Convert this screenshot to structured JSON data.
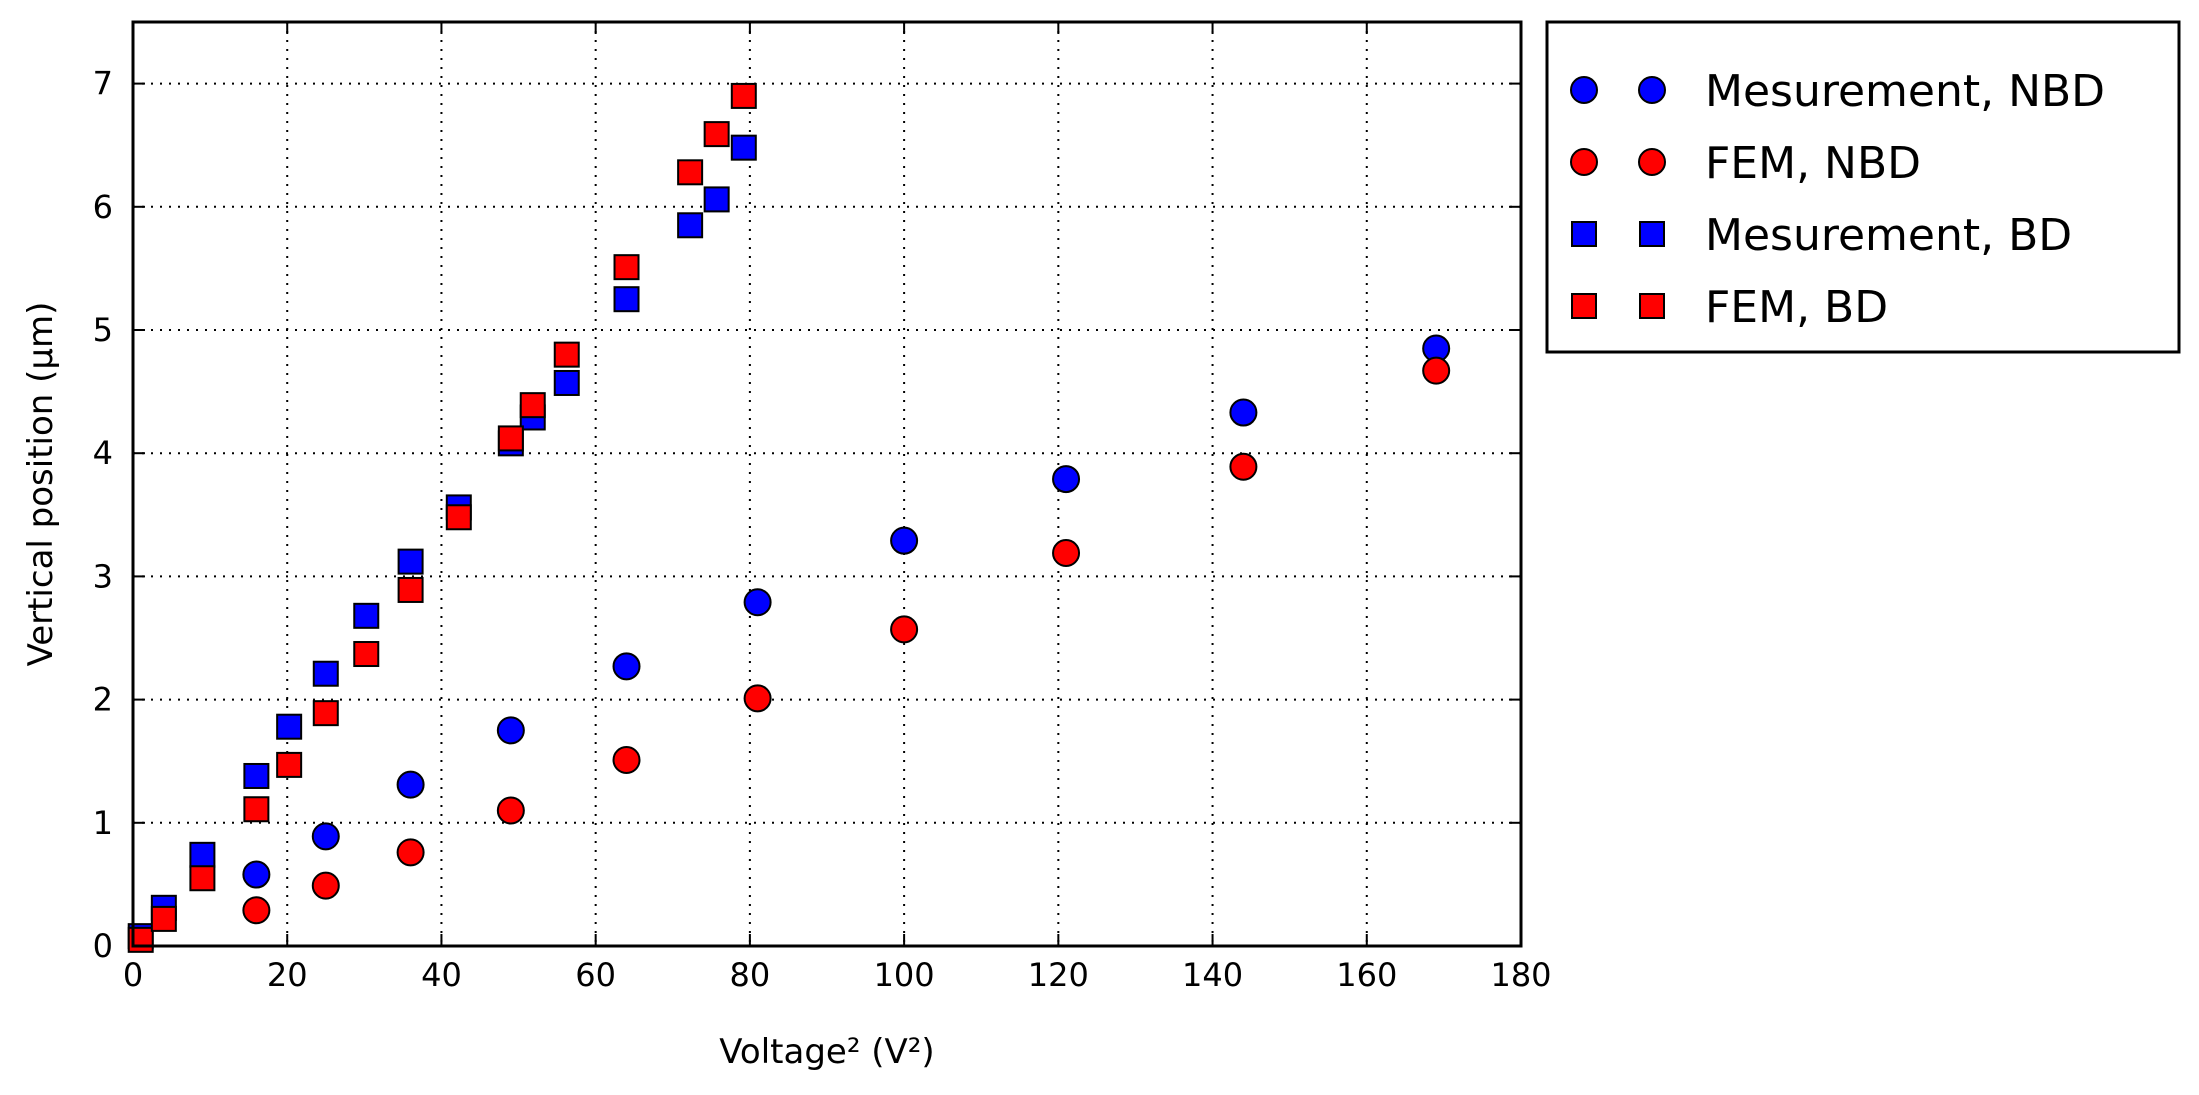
{
  "chart_data": {
    "type": "scatter",
    "xlabel": "Voltage² (V²)",
    "ylabel": "Vertical position (µm)",
    "xlim": [
      0,
      180
    ],
    "ylim": [
      0,
      7.5
    ],
    "xticks": [
      "0",
      "20",
      "40",
      "60",
      "80",
      "100",
      "120",
      "140",
      "160",
      "180"
    ],
    "yticks": [
      "0",
      "1",
      "2",
      "3",
      "4",
      "5",
      "6",
      "7"
    ],
    "grid": true,
    "legend_position": "outside-right",
    "series": [
      {
        "name": "Mesurement, NBD",
        "marker": "circle",
        "color": "#0000ff",
        "x": [
          16,
          25,
          36,
          49,
          64,
          81,
          100,
          121,
          144,
          169
        ],
        "y": [
          0.58,
          0.89,
          1.31,
          1.75,
          2.27,
          2.79,
          3.29,
          3.79,
          4.33,
          4.85
        ]
      },
      {
        "name": "FEM, NBD",
        "marker": "circle",
        "color": "#ff0000",
        "x": [
          16,
          25,
          36,
          49,
          64,
          81,
          100,
          121,
          144,
          169
        ],
        "y": [
          0.29,
          0.49,
          0.76,
          1.1,
          1.51,
          2.01,
          2.57,
          3.19,
          3.89,
          4.67
        ]
      },
      {
        "name": "Mesurement, BD",
        "marker": "square",
        "color": "#0000ff",
        "x": [
          1,
          4,
          9,
          16,
          20.25,
          25,
          30.25,
          36,
          42.25,
          49,
          51.84,
          56.25,
          64,
          72.25,
          75.69,
          79.21
        ],
        "y": [
          0.08,
          0.31,
          0.74,
          1.38,
          1.78,
          2.21,
          2.68,
          3.12,
          3.56,
          4.08,
          4.29,
          4.57,
          5.25,
          5.85,
          6.06,
          6.48
        ]
      },
      {
        "name": "FEM, BD",
        "marker": "square",
        "color": "#ff0000",
        "x": [
          1,
          4,
          9,
          16,
          20.25,
          25,
          30.25,
          36,
          42.25,
          49,
          51.84,
          56.25,
          64,
          72.25,
          75.69,
          79.21
        ],
        "y": [
          0.05,
          0.22,
          0.55,
          1.11,
          1.47,
          1.89,
          2.37,
          2.89,
          3.48,
          4.12,
          4.39,
          4.8,
          5.51,
          6.28,
          6.59,
          6.9
        ]
      }
    ]
  }
}
